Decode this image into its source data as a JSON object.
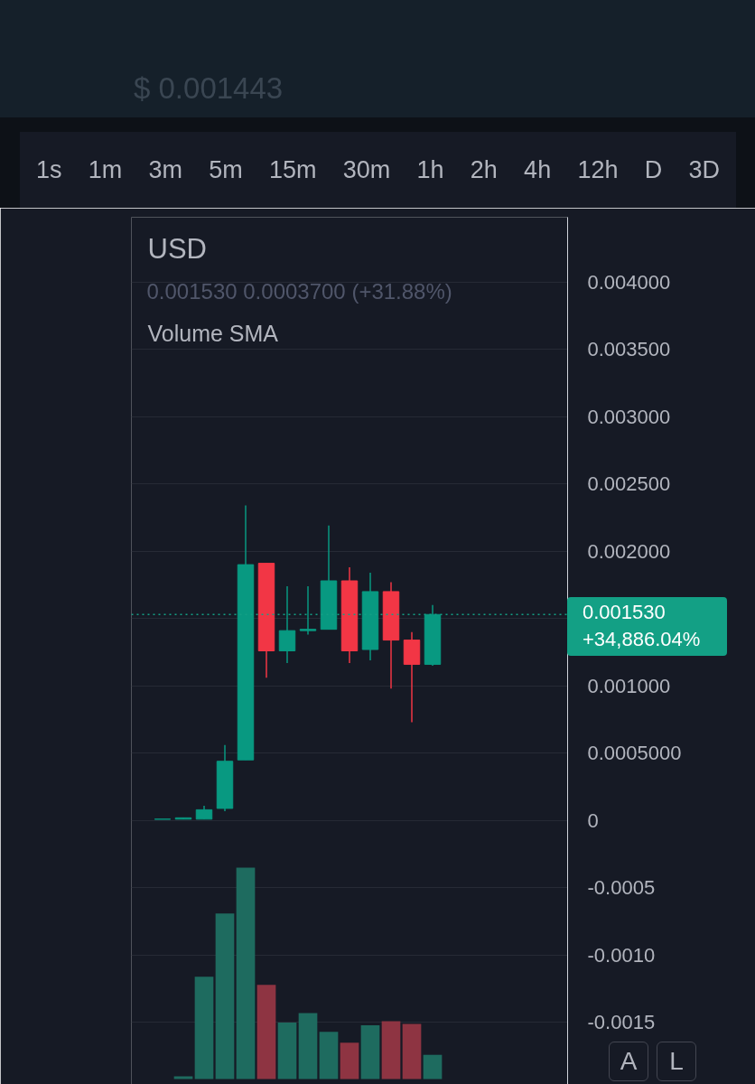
{
  "chart_data": {
    "type": "candlestick",
    "title": "USD",
    "subtitle": "0.001530 0.0003700 (+31.88%)",
    "categories": [
      null,
      null,
      null,
      null,
      null,
      null,
      null,
      null,
      null,
      null,
      null,
      null,
      null,
      null,
      null,
      null,
      null,
      null,
      null,
      null,
      null
    ],
    "ohlc": [
      null,
      [
        1e-05,
        1e-05,
        1e-05,
        1e-05
      ],
      [
        1e-05,
        2e-05,
        1e-05,
        2e-05
      ],
      [
        1e-05,
        0.00011,
        1e-05,
        8e-05
      ],
      [
        9e-05,
        0.00056,
        7e-05,
        0.00044
      ],
      [
        0.00045,
        0.00234,
        0.00045,
        0.0019
      ],
      [
        0.00191,
        0.00191,
        0.00106,
        0.00126
      ],
      [
        0.00126,
        0.00174,
        0.00117,
        0.00141
      ],
      [
        0.00141,
        0.00174,
        0.00138,
        0.00142
      ],
      [
        0.00142,
        0.00219,
        0.00142,
        0.00178
      ],
      [
        0.00178,
        0.00188,
        0.00117,
        0.00126
      ],
      [
        0.00127,
        0.00184,
        0.00119,
        0.0017
      ],
      [
        0.0017,
        0.00177,
        0.00098,
        0.00134
      ],
      [
        0.00134,
        0.0014,
        0.00073,
        0.00116
      ],
      [
        0.00116,
        0.0016,
        0.00115,
        0.00153
      ],
      null,
      null,
      null,
      null,
      null,
      null
    ],
    "colors": [
      null,
      "#089981",
      "#089981",
      "#089981",
      "#089981",
      "#089981",
      "#f23645",
      "#089981",
      "#089981",
      "#089981",
      "#f23645",
      "#089981",
      "#f23645",
      "#f23645",
      "#089981",
      null,
      null,
      null,
      null,
      null,
      null
    ],
    "series": [
      {
        "type": "bar",
        "values": [
          null,
          null,
          2e-05,
          0.00076,
          0.00123,
          0.00157,
          0.0007,
          0.00042,
          0.00049,
          0.00035,
          0.00027,
          0.0004,
          0.00043,
          0.00041,
          0.00018,
          null,
          null,
          null,
          null,
          null,
          null
        ],
        "base": [
          null,
          null,
          -0.00192,
          -0.00192,
          -0.00192,
          -0.00192,
          -0.00192,
          -0.00192,
          -0.00192,
          -0.00192,
          -0.00192,
          -0.00192,
          -0.00192,
          -0.00192,
          -0.00192,
          null,
          null,
          null,
          null,
          null,
          null
        ],
        "colors": [
          null,
          null,
          "#1e6b5f",
          "#1e6b5f",
          "#1e6b5f",
          "#1e6b5f",
          "#8e3442",
          "#1e6b5f",
          "#1e6b5f",
          "#1e6b5f",
          "#8e3442",
          "#1e6b5f",
          "#8e3442",
          "#8e3442",
          "#1e6b5f",
          null,
          null,
          null,
          null,
          null,
          null
        ]
      }
    ],
    "ylim": [
      -0.00196,
      0.00448
    ],
    "yticks": [
      {
        "value": 0.004,
        "label": "0.004000"
      },
      {
        "value": 0.0035,
        "label": "0.003500"
      },
      {
        "value": 0.003,
        "label": "0.003000"
      },
      {
        "value": 0.0025,
        "label": "0.002500"
      },
      {
        "value": 0.002,
        "label": "0.002000"
      },
      {
        "value": 0.0015,
        "label": null
      },
      {
        "value": 0.001,
        "label": "0.001000"
      },
      {
        "value": 0.0005,
        "label": "0.0005000"
      },
      {
        "value": 0,
        "label": "0"
      },
      {
        "value": -0.0005,
        "label": "-0.0005"
      },
      {
        "value": -0.001,
        "label": "-0.0010"
      },
      {
        "value": -0.0015,
        "label": "-0.0015"
      }
    ],
    "grid": "y",
    "tick_labels": "y",
    "ref_lines": [
      {
        "axis": "y",
        "value": 0.00153,
        "label": "0.001530\n+34,886.04%",
        "color": "#13a085",
        "line_style": "dotted"
      }
    ],
    "annotations": [
      "$ 0.001443",
      "1s",
      "1m",
      "3m",
      "5m",
      "15m",
      "30m",
      "1h",
      "2h",
      "4h",
      "12h",
      "D",
      "3D",
      "Volume SMA",
      "A",
      "L"
    ]
  }
}
